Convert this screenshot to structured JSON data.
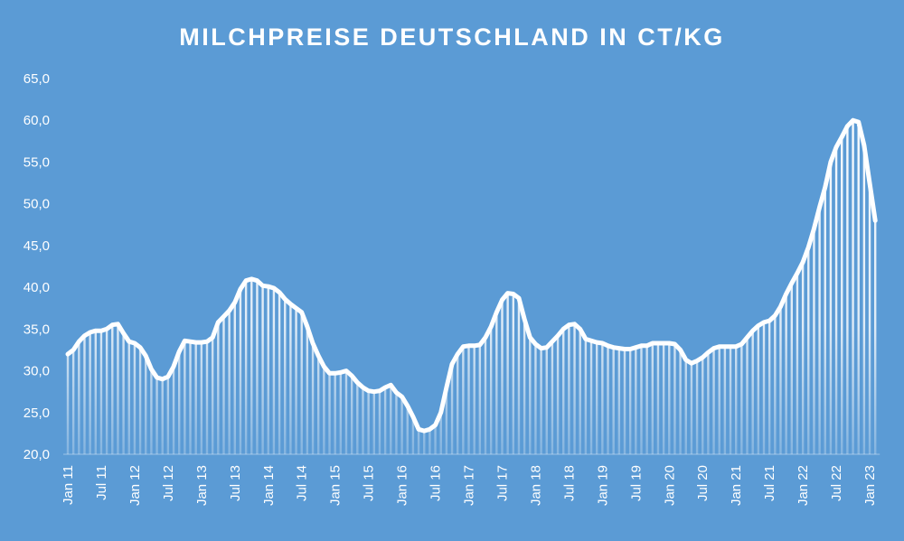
{
  "chart_data": {
    "type": "bar-line",
    "title": "MILCHPREISE DEUTSCHLAND IN CT/KG",
    "categories": [
      "Jan 11",
      null,
      null,
      null,
      null,
      null,
      "Jul 11",
      null,
      null,
      null,
      null,
      null,
      "Jan 12",
      null,
      null,
      null,
      null,
      null,
      "Jul 12",
      null,
      null,
      null,
      null,
      null,
      "Jan 13",
      null,
      null,
      null,
      null,
      null,
      "Jul 13",
      null,
      null,
      null,
      null,
      null,
      "Jan 14",
      null,
      null,
      null,
      null,
      null,
      "Jul 14",
      null,
      null,
      null,
      null,
      null,
      "Jan 15",
      null,
      null,
      null,
      null,
      null,
      "Jul 15",
      null,
      null,
      null,
      null,
      null,
      "Jan 16",
      null,
      null,
      null,
      null,
      null,
      "Jul 16",
      null,
      null,
      null,
      null,
      null,
      "Jan 17",
      null,
      null,
      null,
      null,
      null,
      "Jul 17",
      null,
      null,
      null,
      null,
      null,
      "Jan 18",
      null,
      null,
      null,
      null,
      null,
      "Jul 18",
      null,
      null,
      null,
      null,
      null,
      "Jan 19",
      null,
      null,
      null,
      null,
      null,
      "Jul 19",
      null,
      null,
      null,
      null,
      null,
      "Jan 20",
      null,
      null,
      null,
      null,
      null,
      "Jul 20",
      null,
      null,
      null,
      null,
      null,
      "Jan 21",
      null,
      null,
      null,
      null,
      null,
      "Jul 21",
      null,
      null,
      null,
      null,
      null,
      "Jan 22",
      null,
      null,
      null,
      null,
      null,
      "Jul 22",
      null,
      null,
      null,
      null,
      null,
      "Jan 23",
      null
    ],
    "values": [
      32,
      32.5,
      33.5,
      34.2,
      34.6,
      34.8,
      34.8,
      35,
      35.5,
      35.6,
      34.5,
      33.5,
      33.3,
      32.8,
      31.8,
      30.2,
      29.2,
      29,
      29.3,
      30.5,
      32.3,
      33.6,
      33.5,
      33.4,
      33.4,
      33.5,
      34,
      35.8,
      36.5,
      37.2,
      38.2,
      39.8,
      40.8,
      41,
      40.8,
      40.2,
      40.1,
      39.9,
      39.4,
      38.6,
      38,
      37.5,
      37,
      35.3,
      33.3,
      31.8,
      30.5,
      29.7,
      29.7,
      29.8,
      30,
      29.4,
      28.6,
      28,
      27.6,
      27.5,
      27.6,
      28,
      28.3,
      27.4,
      26.9,
      25.8,
      24.5,
      23,
      22.8,
      23,
      23.5,
      25,
      28,
      30.8,
      32,
      32.9,
      33,
      33,
      33.1,
      34,
      35.3,
      37,
      38.5,
      39.3,
      39.2,
      38.7,
      36.2,
      34,
      33.2,
      32.7,
      32.8,
      33.5,
      34.2,
      35,
      35.5,
      35.6,
      35,
      33.8,
      33.6,
      33.4,
      33.3,
      33,
      32.8,
      32.7,
      32.6,
      32.6,
      32.8,
      33,
      33,
      33.3,
      33.3,
      33.3,
      33.3,
      33.2,
      32.5,
      31.3,
      30.9,
      31.2,
      31.6,
      32.2,
      32.7,
      32.9,
      32.9,
      32.9,
      32.9,
      33.2,
      34,
      34.8,
      35.4,
      35.8,
      36,
      36.6,
      37.7,
      39.2,
      40.5,
      41.7,
      43,
      44.8,
      47,
      49.6,
      52,
      55,
      56.8,
      58,
      59.3,
      60,
      59.8,
      57,
      52.5,
      48
    ],
    "color": "#ffffff",
    "ylim": [
      20,
      65
    ],
    "yticks": [
      {
        "value": 20,
        "label": "20,0"
      },
      {
        "value": 25,
        "label": "25,0"
      },
      {
        "value": 30,
        "label": "30,0"
      },
      {
        "value": 35,
        "label": "35,0"
      },
      {
        "value": 40,
        "label": "40,0"
      },
      {
        "value": 45,
        "label": "45,0"
      },
      {
        "value": 50,
        "label": "50,0"
      },
      {
        "value": 55,
        "label": "55,0"
      },
      {
        "value": 60,
        "label": "60,0"
      },
      {
        "value": 65,
        "label": "65,0"
      }
    ],
    "grid": false
  }
}
